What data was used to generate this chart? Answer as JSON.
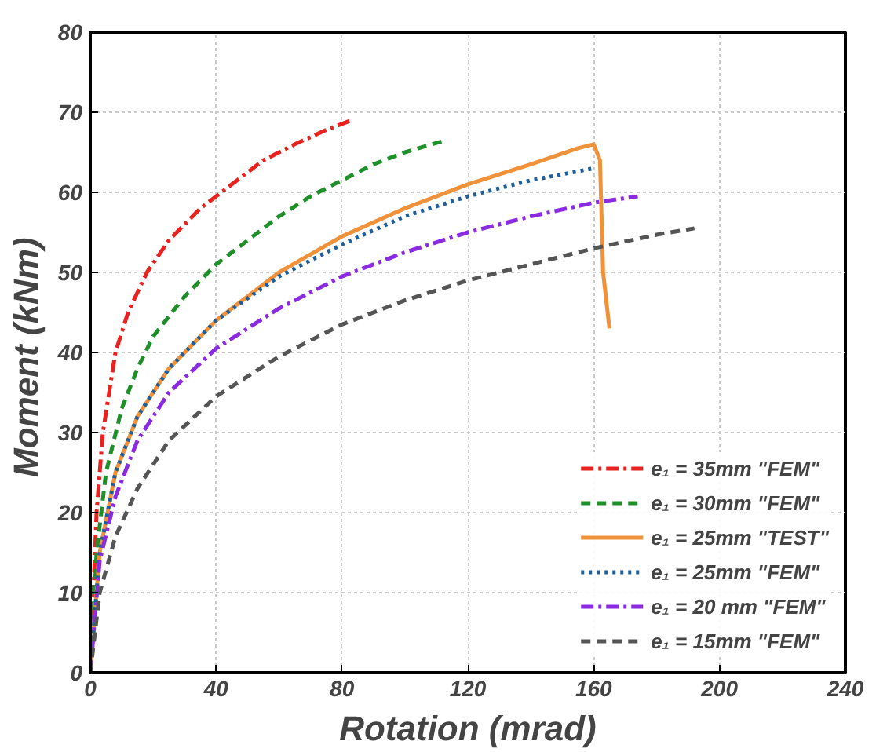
{
  "chart_data": {
    "type": "line",
    "xlabel": "Rotation (mrad)",
    "ylabel": "Moment  (kNm)",
    "xlim": [
      0,
      240
    ],
    "ylim": [
      0,
      80
    ],
    "xticks": [
      0,
      40,
      80,
      120,
      160,
      200,
      240
    ],
    "yticks": [
      0,
      10,
      20,
      30,
      40,
      50,
      60,
      70,
      80
    ],
    "grid": true,
    "legend": "bottom right",
    "marker": "none",
    "series": [
      {
        "name": "e₁ = 35mm \"FEM\"",
        "color": "#e8231f",
        "line_style": "dashdot",
        "x": [
          0,
          2,
          4,
          8,
          12,
          18,
          25,
          35,
          45,
          55,
          65,
          75,
          83
        ],
        "values": [
          0,
          20,
          30,
          40,
          45,
          50,
          54,
          58,
          61,
          64,
          66,
          67.8,
          69
        ]
      },
      {
        "name": "e₁ = 30mm \"FEM\"",
        "color": "#1f8f2a",
        "line_style": "dashed",
        "x": [
          0,
          2,
          5,
          10,
          15,
          20,
          30,
          40,
          50,
          60,
          70,
          80,
          90,
          100,
          113
        ],
        "values": [
          0,
          15,
          25,
          33,
          38,
          42,
          47,
          51,
          54,
          57,
          59.5,
          61.5,
          63.5,
          65,
          66.5
        ]
      },
      {
        "name": "e₁ = 25mm \"TEST\"",
        "color": "#f0923a",
        "line_style": "solid",
        "x": [
          0,
          3,
          8,
          15,
          25,
          40,
          60,
          80,
          100,
          120,
          140,
          155,
          160,
          162,
          163,
          165
        ],
        "values": [
          0,
          15,
          25,
          32,
          38,
          44,
          50,
          54.5,
          58,
          61,
          63.5,
          65.5,
          66,
          64,
          50,
          43
        ]
      },
      {
        "name": "e₁ = 25mm \"FEM\"",
        "color": "#1f5f99",
        "line_style": "dotted",
        "x": [
          0,
          3,
          8,
          15,
          25,
          40,
          60,
          80,
          100,
          120,
          140,
          160
        ],
        "values": [
          0,
          15,
          25,
          32,
          38,
          44,
          49.5,
          53.5,
          57,
          59.5,
          61.5,
          63
        ]
      },
      {
        "name": "e₁ = 20 mm \"FEM\"",
        "color": "#8a2be2",
        "line_style": "dashdot",
        "x": [
          0,
          3,
          8,
          15,
          25,
          40,
          60,
          80,
          100,
          120,
          140,
          160,
          174
        ],
        "values": [
          0,
          14,
          22,
          29,
          35,
          40.5,
          45.5,
          49.5,
          52.5,
          55,
          57,
          58.7,
          59.5
        ]
      },
      {
        "name": "e₁ = 15mm \"FEM\"",
        "color": "#555555",
        "line_style": "dashed",
        "x": [
          0,
          3,
          8,
          15,
          25,
          40,
          60,
          80,
          100,
          120,
          140,
          160,
          180,
          192
        ],
        "values": [
          0,
          10,
          17,
          23,
          29,
          34.5,
          39.5,
          43.5,
          46.5,
          49,
          51,
          53,
          54.7,
          55.5
        ]
      }
    ]
  }
}
